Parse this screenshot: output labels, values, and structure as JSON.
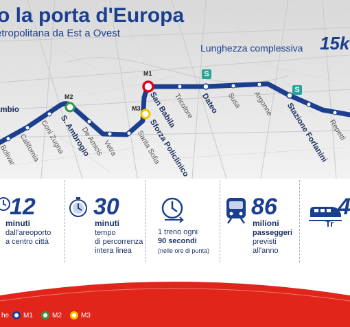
{
  "header": {
    "title": "o la porta d'Europa",
    "subtitle": "etropolitana da Est a Ovest",
    "length_label": "Lunghezza complessiva",
    "length_value": "15k"
  },
  "stations": {
    "cambio": "ambio",
    "bolivar": "Bolivar",
    "california": "California",
    "coni_zugna": "Coni Zugna",
    "s_ambrogio": "S. Ambrogio",
    "de_amicis": "De Amicis",
    "vetra": "Vetra",
    "santa_sofia": "Santa Sofia",
    "sforza": "Sforza Policlinico",
    "san_babila": "San Babila",
    "tricolore": "Tricolore",
    "dateo": "Dateo",
    "susa": "Susa",
    "argonne": "Argonne",
    "forlanini": "Stazione Forlanini",
    "repetti": "Repetti",
    "m1": "M1",
    "m2": "M2",
    "m3": "M3",
    "s": "S"
  },
  "stats": [
    {
      "value": "12",
      "unit": "minuti",
      "desc": [
        "dall'areoporto",
        "a centro città"
      ]
    },
    {
      "value": "30",
      "unit": "minuti",
      "desc": [
        "tempo",
        "di percorrenza",
        "intera linea"
      ]
    },
    {
      "desc": [
        "1 treno ogni",
        "90 secondi",
        "(nelle ore di punta)"
      ]
    },
    {
      "value": "86",
      "unit": "milioni",
      "desc": [
        "passeggeri",
        "previsti",
        "all'anno"
      ]
    },
    {
      "value": "4",
      "unit": "Tr"
    }
  ],
  "legend": {
    "prefix": "he",
    "m1": "M1",
    "m2": "M2",
    "m3": "M3"
  },
  "colors": {
    "line_blue": "#1b3f8f",
    "m1_red": "#e2001a",
    "m2_green": "#2e9a47",
    "m3_yellow": "#f2c500",
    "suburban_teal": "#2aa39a",
    "band_red": "#e1251b"
  }
}
